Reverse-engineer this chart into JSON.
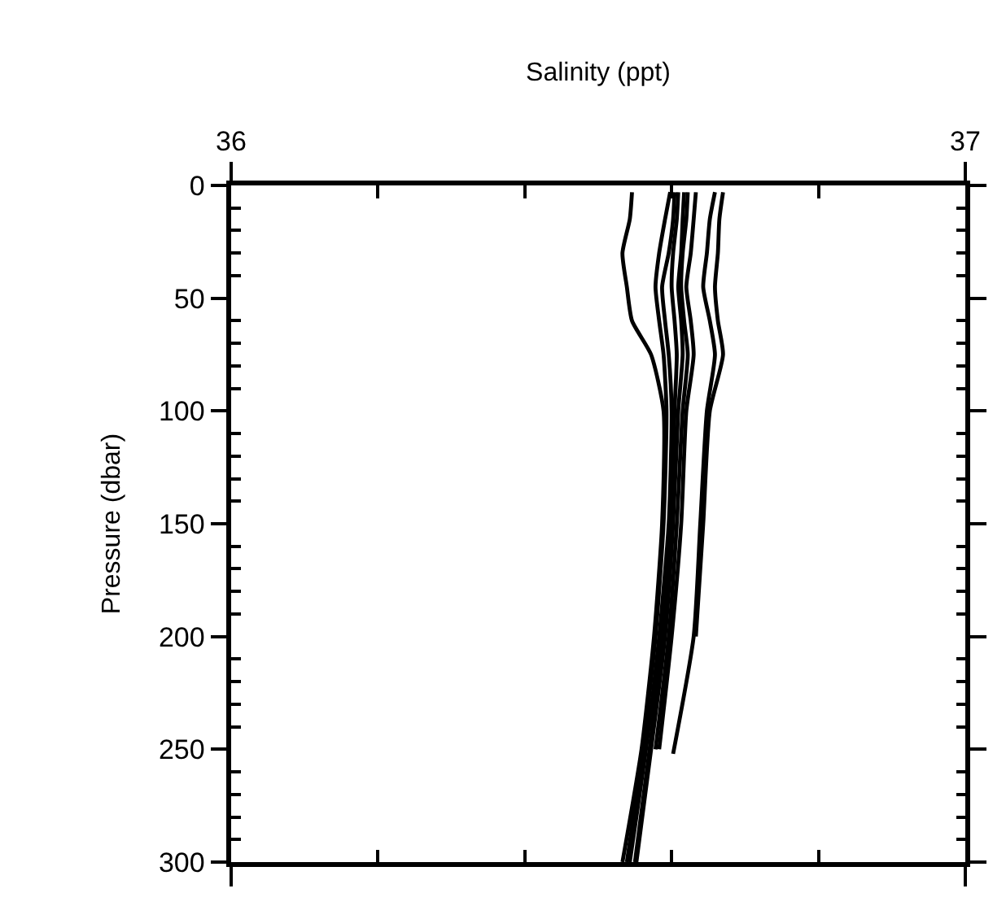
{
  "chart_data": {
    "type": "line",
    "xlabel": "Salinity (ppt)",
    "ylabel": "Pressure (dbar)",
    "xlim": [
      36,
      37
    ],
    "xticks": [
      36,
      {
        "value": 36.2,
        "label": null
      },
      {
        "value": 36.4,
        "label": null
      },
      {
        "value": 36.6,
        "label": null
      },
      {
        "value": 36.8,
        "label": null
      },
      37
    ],
    "ylim": [
      300,
      0
    ],
    "yticks": [
      0,
      {
        "value": 10,
        "label": null
      },
      {
        "value": 20,
        "label": null
      },
      {
        "value": 30,
        "label": null
      },
      {
        "value": 40,
        "label": null
      },
      50,
      {
        "value": 60,
        "label": null
      },
      {
        "value": 70,
        "label": null
      },
      {
        "value": 80,
        "label": null
      },
      {
        "value": 90,
        "label": null
      },
      100,
      {
        "value": 110,
        "label": null
      },
      {
        "value": 120,
        "label": null
      },
      {
        "value": 130,
        "label": null
      },
      {
        "value": 140,
        "label": null
      },
      150,
      {
        "value": 160,
        "label": null
      },
      {
        "value": 170,
        "label": null
      },
      {
        "value": 180,
        "label": null
      },
      {
        "value": 190,
        "label": null
      },
      200,
      {
        "value": 210,
        "label": null
      },
      {
        "value": 220,
        "label": null
      },
      {
        "value": 230,
        "label": null
      },
      {
        "value": 240,
        "label": null
      },
      250,
      {
        "value": 260,
        "label": null
      },
      {
        "value": 270,
        "label": null
      },
      {
        "value": 280,
        "label": null
      },
      {
        "value": 290,
        "label": null
      },
      300
    ],
    "marker": "none",
    "line_style": "solid",
    "series": [
      {
        "color": "#000000",
        "x": [
          36.546,
          36.543,
          36.533,
          36.539,
          36.546,
          36.572,
          36.589,
          36.587,
          36.576,
          36.559,
          36.533
        ],
        "values": [
          3,
          15,
          30,
          45,
          60,
          75,
          100,
          150,
          200,
          250,
          300
        ]
      },
      {
        "color": "#000000",
        "x": [
          36.598,
          36.591,
          36.583,
          36.578,
          36.583,
          36.589,
          36.593,
          36.589,
          36.578,
          36.561,
          36.539
        ],
        "values": [
          3,
          15,
          30,
          45,
          60,
          75,
          100,
          150,
          200,
          250,
          300
        ]
      },
      {
        "color": "#000000",
        "x": [
          36.604,
          36.602,
          36.596,
          36.587,
          36.591,
          36.596,
          36.6,
          36.596,
          36.583,
          36.565,
          36.543
        ],
        "values": [
          3,
          15,
          30,
          45,
          60,
          75,
          100,
          150,
          200,
          250,
          300
        ]
      },
      {
        "color": "#000000",
        "x": [
          36.609,
          36.607,
          36.602,
          36.6,
          36.604,
          36.607,
          36.604,
          36.6,
          36.587,
          36.57,
          36.55
        ],
        "values": [
          3,
          15,
          30,
          45,
          60,
          75,
          100,
          150,
          200,
          250,
          300
        ]
      },
      {
        "color": "#000000",
        "x": [
          36.617,
          36.615,
          36.613,
          36.609,
          36.613,
          36.615,
          36.609,
          36.602,
          36.591,
          36.572,
          36.552
        ],
        "values": [
          3,
          15,
          30,
          45,
          60,
          75,
          100,
          150,
          200,
          250,
          300
        ]
      },
      {
        "color": "#000000",
        "x": [
          36.622,
          36.62,
          36.615,
          36.613,
          36.617,
          36.622,
          36.615,
          36.607,
          36.596,
          36.578
        ],
        "values": [
          3,
          15,
          30,
          45,
          60,
          75,
          100,
          150,
          200,
          250
        ]
      },
      {
        "color": "#000000",
        "x": [
          36.633,
          36.63,
          36.626,
          36.62,
          36.626,
          36.63,
          36.62,
          36.613,
          36.6,
          36.583
        ],
        "values": [
          3,
          15,
          30,
          45,
          60,
          75,
          100,
          150,
          200,
          250
        ]
      },
      {
        "color": "#000000",
        "x": [
          36.659,
          36.652,
          36.648,
          36.643,
          36.652,
          36.659,
          36.648,
          36.639,
          36.63,
          36.602
        ],
        "values": [
          3,
          15,
          30,
          45,
          60,
          75,
          100,
          150,
          200,
          252
        ]
      },
      {
        "color": "#000000",
        "x": [
          36.67,
          36.665,
          36.663,
          36.659,
          36.663,
          36.67,
          36.652,
          36.643,
          36.633
        ],
        "values": [
          3,
          15,
          30,
          45,
          60,
          75,
          100,
          150,
          200
        ]
      }
    ]
  }
}
